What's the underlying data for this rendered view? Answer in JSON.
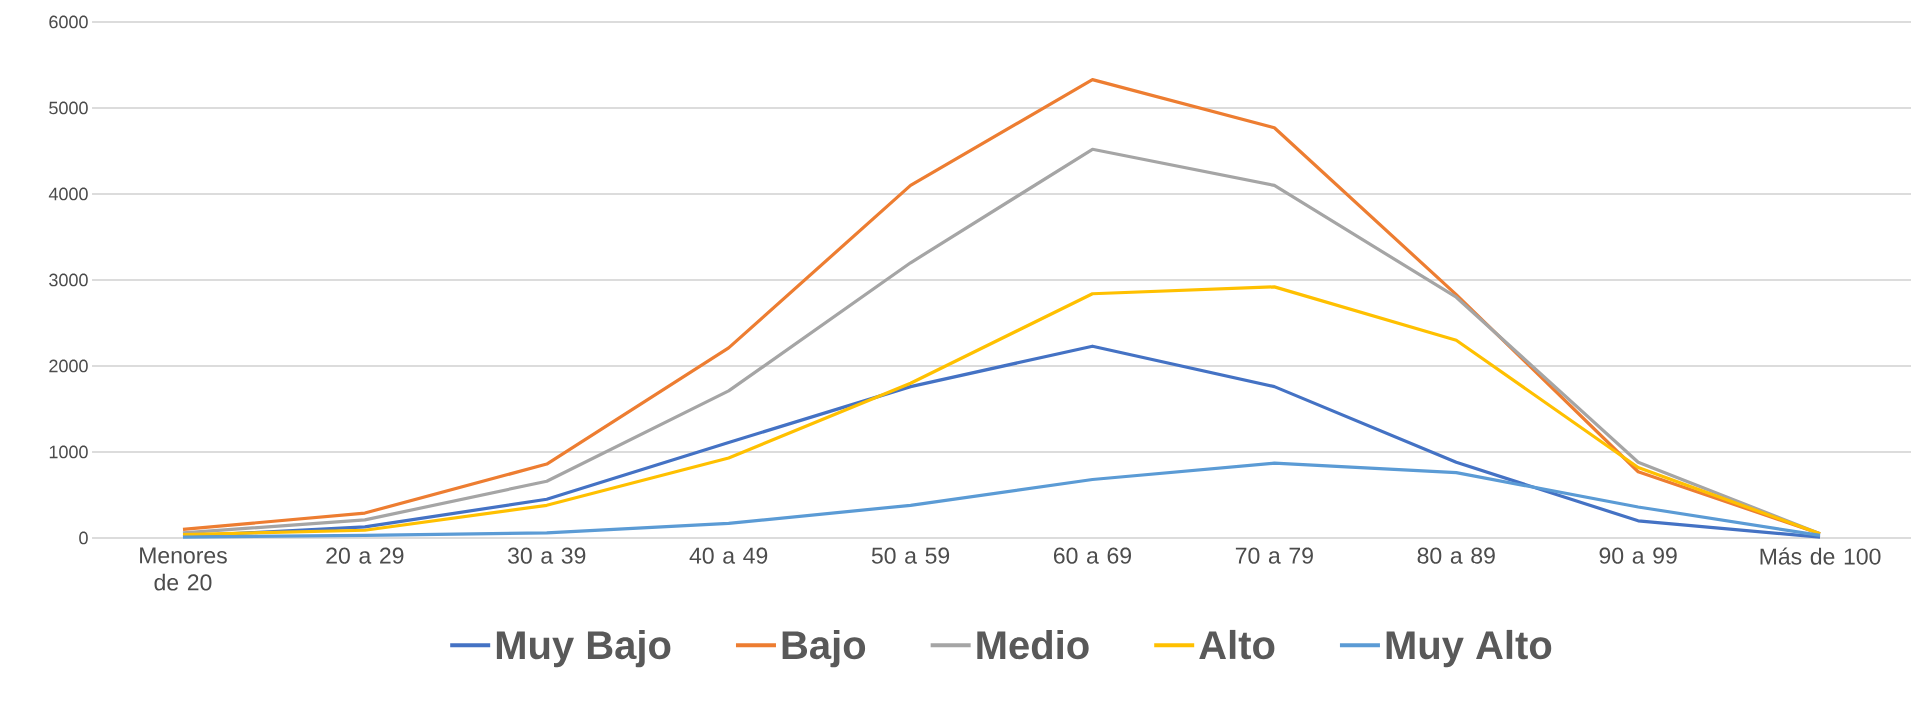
{
  "chart_data": {
    "type": "line",
    "categories": [
      "Menores de 20",
      "20 a 29",
      "30 a 39",
      "40 a 49",
      "50 a 59",
      "60 a 69",
      "70 a 79",
      "80 a 89",
      "90 a 99",
      "Más de 100"
    ],
    "series": [
      {
        "name": "Muy Bajo",
        "color": "#4472c4",
        "values": [
          20,
          130,
          450,
          1110,
          1760,
          2230,
          1760,
          880,
          200,
          10
        ]
      },
      {
        "name": "Bajo",
        "color": "#ed7d31",
        "values": [
          100,
          290,
          860,
          2210,
          4100,
          5330,
          4770,
          2830,
          770,
          50
        ]
      },
      {
        "name": "Medio",
        "color": "#a5a5a5",
        "values": [
          60,
          210,
          660,
          1710,
          3200,
          4520,
          4100,
          2800,
          880,
          50
        ]
      },
      {
        "name": "Alto",
        "color": "#ffc000",
        "values": [
          40,
          90,
          380,
          930,
          1800,
          2840,
          2920,
          2300,
          820,
          50
        ]
      },
      {
        "name": "Muy Alto",
        "color": "#5b9bd5",
        "values": [
          10,
          30,
          60,
          170,
          380,
          680,
          870,
          760,
          360,
          30
        ]
      }
    ],
    "ylim": [
      0,
      6000
    ],
    "yticks": [
      0,
      1000,
      2000,
      3000,
      4000,
      5000,
      6000
    ],
    "grid": "y",
    "legend": "bottom",
    "marker": "none",
    "line_style": "solid"
  }
}
